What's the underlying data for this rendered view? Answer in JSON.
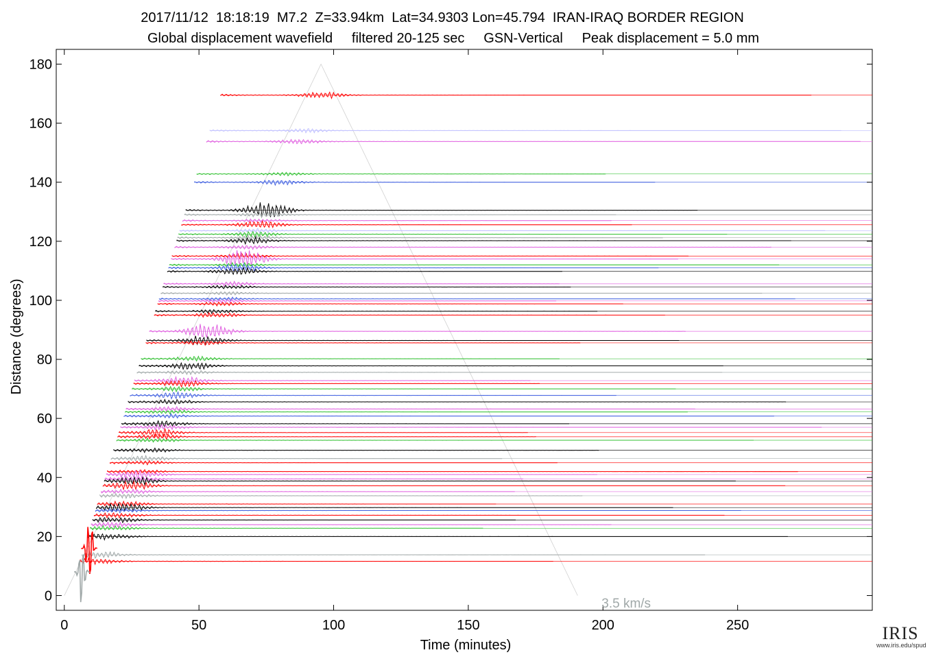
{
  "header": {
    "line1": "2017/11/12  18:18:19  M7.2  Z=33.94km  Lat=34.9303 Lon=45.794  IRAN-IRAQ BORDER REGION",
    "line2": "Global displacement wavefield     filtered 20-125 sec     GSN-Vertical     Peak displacement = 5.0 mm"
  },
  "logo": {
    "word": "IRIS",
    "url": "www.iris.edu/spud"
  },
  "chart_data": {
    "type": "line",
    "title": "",
    "xlabel": "Time (minutes)",
    "ylabel": "Distance (degrees)",
    "xlim": [
      -3,
      300
    ],
    "ylim": [
      -5,
      185
    ],
    "xticks": [
      0,
      50,
      100,
      150,
      200,
      250
    ],
    "yticks": [
      0,
      20,
      40,
      60,
      80,
      100,
      120,
      140,
      160,
      180
    ],
    "grid": false,
    "annotation": {
      "text": "3.5 km/s",
      "x": 200,
      "y": -2
    },
    "velocity_guide": {
      "points": [
        [
          0,
          0
        ],
        [
          95.3,
          180
        ],
        [
          190.6,
          0
        ]
      ],
      "label": "3.5 km/s"
    },
    "series_colors": [
      "#ff0000",
      "#000000",
      "#30c030",
      "#4060e0",
      "#e060e0",
      "#a0a8a8",
      "#c0c0ff"
    ],
    "traces": [
      {
        "distance": 169.5,
        "color": "#ff0000",
        "amplitude": 1.2
      },
      {
        "distance": 157.5,
        "color": "#c0c0ff",
        "amplitude": 0.8
      },
      {
        "distance": 153.8,
        "color": "#e060e0",
        "amplitude": 0.9
      },
      {
        "distance": 142.8,
        "color": "#30c030",
        "amplitude": 0.6
      },
      {
        "distance": 140.0,
        "color": "#4060e0",
        "amplitude": 1.0
      },
      {
        "distance": 130.5,
        "color": "#000000",
        "amplitude": 3.0
      },
      {
        "distance": 129.0,
        "color": "#a0a8a8",
        "amplitude": 1.0
      },
      {
        "distance": 127.0,
        "color": "#e060e0",
        "amplitude": 0.6
      },
      {
        "distance": 125.6,
        "color": "#ff0000",
        "amplitude": 1.5
      },
      {
        "distance": 123.6,
        "color": "#c0c0ff",
        "amplitude": 0.8
      },
      {
        "distance": 122.4,
        "color": "#30c030",
        "amplitude": 1.1
      },
      {
        "distance": 121.2,
        "color": "#a0a8a8",
        "amplitude": 0.9
      },
      {
        "distance": 120.2,
        "color": "#000000",
        "amplitude": 1.2
      },
      {
        "distance": 118.0,
        "color": "#e060e0",
        "amplitude": 0.8
      },
      {
        "distance": 115.0,
        "color": "#ff0000",
        "amplitude": 0.9
      },
      {
        "distance": 114.0,
        "color": "#e060e0",
        "amplitude": 3.4
      },
      {
        "distance": 112.0,
        "color": "#30c030",
        "amplitude": 0.8
      },
      {
        "distance": 111.0,
        "color": "#4060e0",
        "amplitude": 1.6
      },
      {
        "distance": 109.8,
        "color": "#000000",
        "amplitude": 1.4
      },
      {
        "distance": 105.6,
        "color": "#e060e0",
        "amplitude": 0.8
      },
      {
        "distance": 104.5,
        "color": "#000000",
        "amplitude": 0.7
      },
      {
        "distance": 102.4,
        "color": "#a0a8a8",
        "amplitude": 0.6
      },
      {
        "distance": 100.5,
        "color": "#4060e0",
        "amplitude": 0.6
      },
      {
        "distance": 99.8,
        "color": "#e060e0",
        "amplitude": 0.6
      },
      {
        "distance": 98.8,
        "color": "#ff0000",
        "amplitude": 0.7
      },
      {
        "distance": 96.3,
        "color": "#000000",
        "amplitude": 0.8
      },
      {
        "distance": 95.0,
        "color": "#ff0000",
        "amplitude": 1.0
      },
      {
        "distance": 89.5,
        "color": "#e060e0",
        "amplitude": 3.0
      },
      {
        "distance": 86.4,
        "color": "#000000",
        "amplitude": 1.8
      },
      {
        "distance": 85.6,
        "color": "#ff0000",
        "amplitude": 0.8
      },
      {
        "distance": 80.2,
        "color": "#30c030",
        "amplitude": 0.9
      },
      {
        "distance": 77.8,
        "color": "#000000",
        "amplitude": 1.4
      },
      {
        "distance": 75.6,
        "color": "#a0a8a8",
        "amplitude": 0.8
      },
      {
        "distance": 72.8,
        "color": "#e060e0",
        "amplitude": 1.5
      },
      {
        "distance": 71.8,
        "color": "#ff0000",
        "amplitude": 1.2
      },
      {
        "distance": 70.0,
        "color": "#30c030",
        "amplitude": 1.0
      },
      {
        "distance": 67.8,
        "color": "#4060e0",
        "amplitude": 1.3
      },
      {
        "distance": 65.6,
        "color": "#000000",
        "amplitude": 0.9
      },
      {
        "distance": 63.2,
        "color": "#e060e0",
        "amplitude": 0.8
      },
      {
        "distance": 62.2,
        "color": "#30c030",
        "amplitude": 0.9
      },
      {
        "distance": 60.8,
        "color": "#4060e0",
        "amplitude": 0.8
      },
      {
        "distance": 58.2,
        "color": "#000000",
        "amplitude": 1.2
      },
      {
        "distance": 57.0,
        "color": "#e060e0",
        "amplitude": 1.0
      },
      {
        "distance": 55.2,
        "color": "#ff0000",
        "amplitude": 1.4
      },
      {
        "distance": 53.8,
        "color": "#ff0000",
        "amplitude": 1.0
      },
      {
        "distance": 52.6,
        "color": "#30c030",
        "amplitude": 0.8
      },
      {
        "distance": 49.2,
        "color": "#000000",
        "amplitude": 0.8
      },
      {
        "distance": 46.4,
        "color": "#a0a8a8",
        "amplitude": 1.0
      },
      {
        "distance": 45.0,
        "color": "#ff0000",
        "amplitude": 0.7
      },
      {
        "distance": 42.0,
        "color": "#ff0000",
        "amplitude": 0.8
      },
      {
        "distance": 41.0,
        "color": "#e060e0",
        "amplitude": 1.6
      },
      {
        "distance": 39.5,
        "color": "#e060e0",
        "amplitude": 1.0
      },
      {
        "distance": 38.8,
        "color": "#000000",
        "amplitude": 1.4
      },
      {
        "distance": 37.2,
        "color": "#ff0000",
        "amplitude": 1.4
      },
      {
        "distance": 35.2,
        "color": "#e060e0",
        "amplitude": 0.8
      },
      {
        "distance": 33.8,
        "color": "#a0a8a8",
        "amplitude": 0.8
      },
      {
        "distance": 31.0,
        "color": "#ff0000",
        "amplitude": 1.0
      },
      {
        "distance": 29.8,
        "color": "#000000",
        "amplitude": 1.6
      },
      {
        "distance": 28.8,
        "color": "#4060e0",
        "amplitude": 0.8
      },
      {
        "distance": 27.2,
        "color": "#ff0000",
        "amplitude": 0.9
      },
      {
        "distance": 25.6,
        "color": "#000000",
        "amplitude": 1.0
      },
      {
        "distance": 24.0,
        "color": "#e060e0",
        "amplitude": 0.9
      },
      {
        "distance": 22.8,
        "color": "#30c030",
        "amplitude": 0.8
      },
      {
        "distance": 20.0,
        "color": "#000000",
        "amplitude": 1.2
      },
      {
        "distance": 13.8,
        "color": "#a0a8a8",
        "amplitude": 1.2
      },
      {
        "distance": 11.6,
        "color": "#ff0000",
        "amplitude": 1.0
      },
      {
        "distance": 16.0,
        "color": "#ff0000",
        "amplitude": 9.0
      },
      {
        "distance": 8.0,
        "color": "#a0a8a8",
        "amplitude": 8.0
      }
    ]
  }
}
